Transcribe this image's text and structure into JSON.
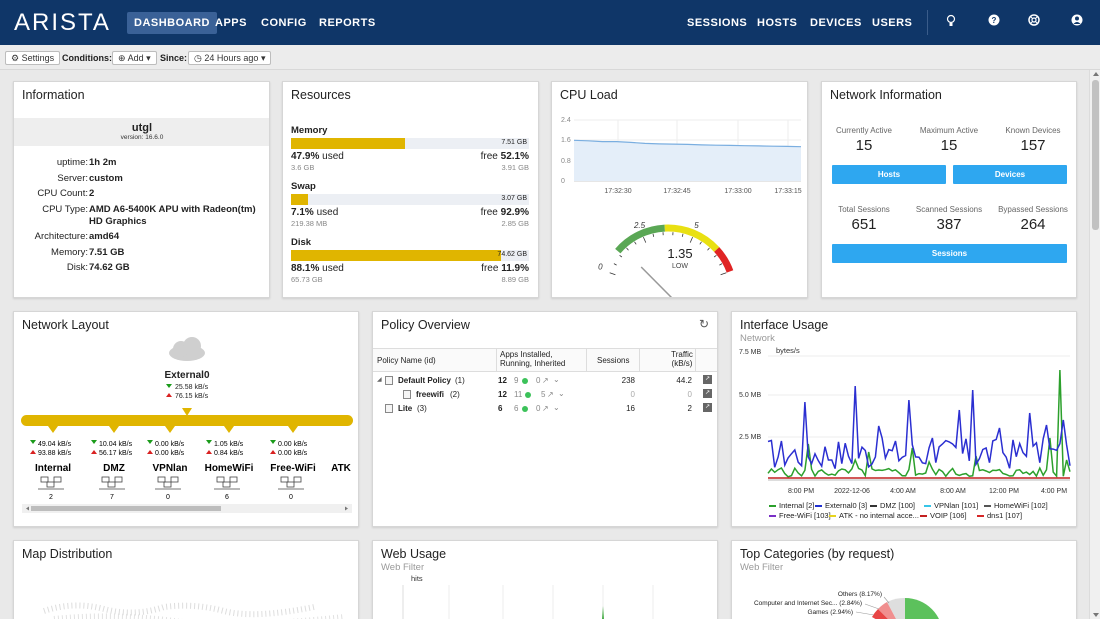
{
  "brand": {
    "logo": "ARISTA"
  },
  "nav": {
    "left": [
      {
        "label": "DASHBOARD",
        "active": true
      },
      {
        "label": "APPS"
      },
      {
        "label": "CONFIG"
      },
      {
        "label": "REPORTS"
      }
    ],
    "right": [
      {
        "label": "SESSIONS"
      },
      {
        "label": "HOSTS"
      },
      {
        "label": "DEVICES"
      },
      {
        "label": "USERS"
      }
    ],
    "icons": [
      "lightbulb-icon",
      "help-icon",
      "support-icon",
      "account-icon"
    ]
  },
  "toolbar": {
    "settings_label": "Settings",
    "conditions_label": "Conditions:",
    "add_label": "Add",
    "since_label": "Since:",
    "since_value": "24 Hours ago"
  },
  "information": {
    "title": "Information",
    "hostname": "utgl",
    "version": "version: 16.6.0",
    "rows": [
      {
        "k": "uptime:",
        "v": "1h 2m"
      },
      {
        "k": "Server:",
        "v": "custom"
      },
      {
        "k": "CPU Count:",
        "v": "2"
      },
      {
        "k": "CPU Type:",
        "v": "AMD A6-5400K APU with Radeon(tm) HD Graphics"
      },
      {
        "k": "Architecture:",
        "v": "amd64"
      },
      {
        "k": "Memory:",
        "v": "7.51 GB"
      },
      {
        "k": "Disk:",
        "v": "74.62 GB"
      }
    ]
  },
  "resources": {
    "title": "Resources",
    "items": [
      {
        "name": "Memory",
        "total": "7.51 GB",
        "used_pct": "47.9%",
        "used_label": "used",
        "free_label": "free",
        "free_pct": "52.1%",
        "used_size": "3.6 GB",
        "free_size": "3.91 GB",
        "fill": 0.479
      },
      {
        "name": "Swap",
        "total": "3.07 GB",
        "used_pct": "7.1%",
        "used_label": "used",
        "free_label": "free",
        "free_pct": "92.9%",
        "used_size": "219.38 MB",
        "free_size": "2.85 GB",
        "fill": 0.071
      },
      {
        "name": "Disk",
        "total": "74.62 GB",
        "used_pct": "88.1%",
        "used_label": "used",
        "free_label": "free",
        "free_pct": "11.9%",
        "used_size": "65.73 GB",
        "free_size": "8.89 GB",
        "fill": 0.881
      }
    ]
  },
  "cpu": {
    "title": "CPU Load",
    "y_ticks": [
      "2.4",
      "1.6",
      "0.8",
      "0"
    ],
    "x_ticks": [
      "17:32:30",
      "17:32:45",
      "17:33:00",
      "17:33:15"
    ],
    "gauge_ticks": [
      "0",
      "2.5",
      "5"
    ],
    "gauge_value": "1.35",
    "gauge_status": "LOW",
    "gauge_level": 1.35,
    "series": [
      1.6,
      1.58,
      1.55,
      1.55,
      1.52,
      1.48,
      1.46,
      1.45,
      1.44,
      1.42,
      1.41,
      1.4,
      1.39,
      1.38,
      1.37,
      1.36,
      1.35
    ]
  },
  "network_info": {
    "title": "Network Information",
    "top": [
      {
        "label": "Currently Active",
        "value": "15"
      },
      {
        "label": "Maximum Active",
        "value": "15"
      },
      {
        "label": "Known Devices",
        "value": "157"
      }
    ],
    "hosts_button": "Hosts",
    "devices_button": "Devices",
    "bottom": [
      {
        "label": "Total Sessions",
        "value": "651"
      },
      {
        "label": "Scanned Sessions",
        "value": "387"
      },
      {
        "label": "Bypassed Sessions",
        "value": "264"
      }
    ],
    "sessions_button": "Sessions"
  },
  "network_layout": {
    "title": "Network Layout",
    "external": {
      "name": "External0",
      "down": "25.58 kB/s",
      "up": "76.15 kB/s"
    },
    "interfaces": [
      {
        "name": "Internal",
        "down": "49.04 kB/s",
        "up": "93.88 kB/s",
        "hosts": "2"
      },
      {
        "name": "DMZ",
        "down": "10.04 kB/s",
        "up": "56.17 kB/s",
        "hosts": "7"
      },
      {
        "name": "VPNlan",
        "down": "0.00 kB/s",
        "up": "0.00 kB/s",
        "hosts": "0"
      },
      {
        "name": "HomeWiFi",
        "down": "1.05 kB/s",
        "up": "0.84 kB/s",
        "hosts": "6"
      },
      {
        "name": "Free-WiFi",
        "down": "0.00 kB/s",
        "up": "0.00 kB/s",
        "hosts": "0"
      },
      {
        "name": "ATK",
        "down": "",
        "up": "",
        "hosts": ""
      }
    ]
  },
  "policy": {
    "title": "Policy Overview",
    "headers": {
      "name": "Policy Name (id)",
      "apps": "Apps Installed, Running, Inherited",
      "sessions": "Sessions",
      "traffic": "Traffic (kB/s)"
    },
    "rows": [
      {
        "name": "Default Policy",
        "id": "(1)",
        "installed": "12",
        "running": "9",
        "inherited": "0",
        "sessions": "238",
        "traffic": "44.2"
      },
      {
        "name": "freewifi",
        "id": "(2)",
        "installed": "12",
        "running": "11",
        "inherited": "5",
        "sessions": "0",
        "traffic": "0"
      },
      {
        "name": "Lite",
        "id": "(3)",
        "installed": "6",
        "running": "6",
        "inherited": "0",
        "sessions": "16",
        "traffic": "2"
      }
    ]
  },
  "interface_usage": {
    "title": "Interface Usage",
    "subtitle": "Network",
    "unit": "bytes/s",
    "y_ticks": [
      "5.0 MB",
      "2.5 MB",
      "7.5 MB"
    ],
    "x_ticks": [
      "8:00 PM",
      "2022-12-06",
      "4:00 AM",
      "8:00 AM",
      "12:00 PM",
      "4:00 PM"
    ],
    "legend": [
      {
        "label": "Internal [2]",
        "color": "#2ca02c"
      },
      {
        "label": "External0 [3]",
        "color": "#1f2fd1"
      },
      {
        "label": "DMZ [100]",
        "color": "#333333"
      },
      {
        "label": "VPNlan [101]",
        "color": "#37c5e8"
      },
      {
        "label": "HomeWiFi [102]",
        "color": "#555555"
      },
      {
        "label": "Free-WiFi [103]",
        "color": "#7a2fc6"
      },
      {
        "label": "ATK - no internal acce...",
        "color": "#e6d31f"
      },
      {
        "label": "VOIP [106]",
        "color": "#c32020"
      },
      {
        "label": "dns1 [107]",
        "color": "#d62728"
      }
    ]
  },
  "map": {
    "title": "Map Distribution"
  },
  "web_usage": {
    "title": "Web Usage",
    "subtitle": "Web Filter",
    "unit": "hits"
  },
  "top_categories": {
    "title": "Top Categories (by request)",
    "subtitle": "Web Filter",
    "labels": [
      {
        "text": "Others (8.17%)"
      },
      {
        "text": "Computer and Internet Sec... (2.84%)"
      },
      {
        "text": "Games (2.94%)"
      }
    ]
  }
}
